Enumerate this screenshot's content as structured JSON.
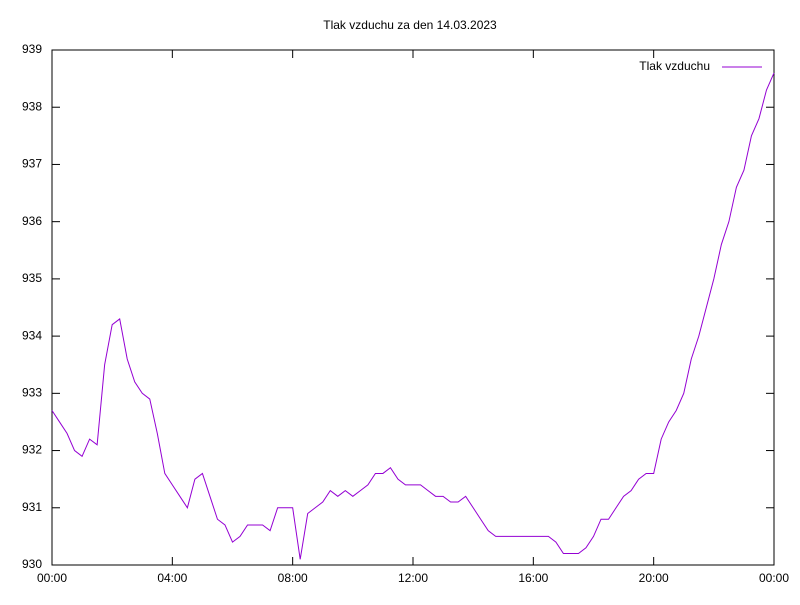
{
  "chart_data": {
    "type": "line",
    "title": "Tlak vzduchu za den 14.03.2023",
    "x": [
      0,
      0.25,
      0.5,
      0.75,
      1,
      1.25,
      1.5,
      1.75,
      2,
      2.25,
      2.5,
      2.75,
      3,
      3.25,
      3.5,
      3.75,
      4,
      4.25,
      4.5,
      4.75,
      5,
      5.25,
      5.5,
      5.75,
      6,
      6.25,
      6.5,
      6.75,
      7,
      7.25,
      7.5,
      7.75,
      8,
      8.25,
      8.5,
      8.75,
      9,
      9.25,
      9.5,
      9.75,
      10,
      10.25,
      10.5,
      10.75,
      11,
      11.25,
      11.5,
      11.75,
      12,
      12.25,
      12.5,
      12.75,
      13,
      13.25,
      13.5,
      13.75,
      14,
      14.25,
      14.5,
      14.75,
      15,
      15.25,
      15.5,
      15.75,
      16,
      16.25,
      16.5,
      16.75,
      17,
      17.25,
      17.5,
      17.75,
      18,
      18.25,
      18.5,
      18.75,
      19,
      19.25,
      19.5,
      19.75,
      20,
      20.25,
      20.5,
      20.75,
      21,
      21.25,
      21.5,
      21.75,
      22,
      22.25,
      22.5,
      22.75,
      23,
      23.25,
      23.5,
      23.75,
      24
    ],
    "series": [
      {
        "name": "Tlak vzduchu",
        "color": "#9400d3",
        "values": [
          932.7,
          932.5,
          932.3,
          932.0,
          931.9,
          932.2,
          932.1,
          933.5,
          934.2,
          934.3,
          933.6,
          933.2,
          933.0,
          932.9,
          932.3,
          931.6,
          931.4,
          931.2,
          931.0,
          931.5,
          931.6,
          931.2,
          930.8,
          930.7,
          930.4,
          930.5,
          930.7,
          930.7,
          930.7,
          930.6,
          931.0,
          931.0,
          931.0,
          930.1,
          930.9,
          931.0,
          931.1,
          931.3,
          931.2,
          931.3,
          931.2,
          931.3,
          931.4,
          931.6,
          931.6,
          931.7,
          931.5,
          931.4,
          931.4,
          931.4,
          931.3,
          931.2,
          931.2,
          931.1,
          931.1,
          931.2,
          931.0,
          930.8,
          930.6,
          930.5,
          930.5,
          930.5,
          930.5,
          930.5,
          930.5,
          930.5,
          930.5,
          930.4,
          930.2,
          930.2,
          930.2,
          930.3,
          930.5,
          930.8,
          930.8,
          931.0,
          931.2,
          931.3,
          931.5,
          931.6,
          931.6,
          932.2,
          932.5,
          932.7,
          933.0,
          933.6,
          934.0,
          934.5,
          935.0,
          935.6,
          936.0,
          936.6,
          936.9,
          937.5,
          937.8,
          938.3,
          938.6
        ]
      }
    ],
    "xlim": [
      0,
      24
    ],
    "xticks": [
      {
        "value": 0,
        "label": "00:00"
      },
      {
        "value": 4,
        "label": "04:00"
      },
      {
        "value": 8,
        "label": "08:00"
      },
      {
        "value": 12,
        "label": "12:00"
      },
      {
        "value": 16,
        "label": "16:00"
      },
      {
        "value": 20,
        "label": "20:00"
      },
      {
        "value": 24,
        "label": "00:00"
      }
    ],
    "ylim": [
      930,
      939
    ],
    "yticks": [
      930,
      931,
      932,
      933,
      934,
      935,
      936,
      937,
      938,
      939
    ],
    "grid": false,
    "legend": "top-right"
  }
}
